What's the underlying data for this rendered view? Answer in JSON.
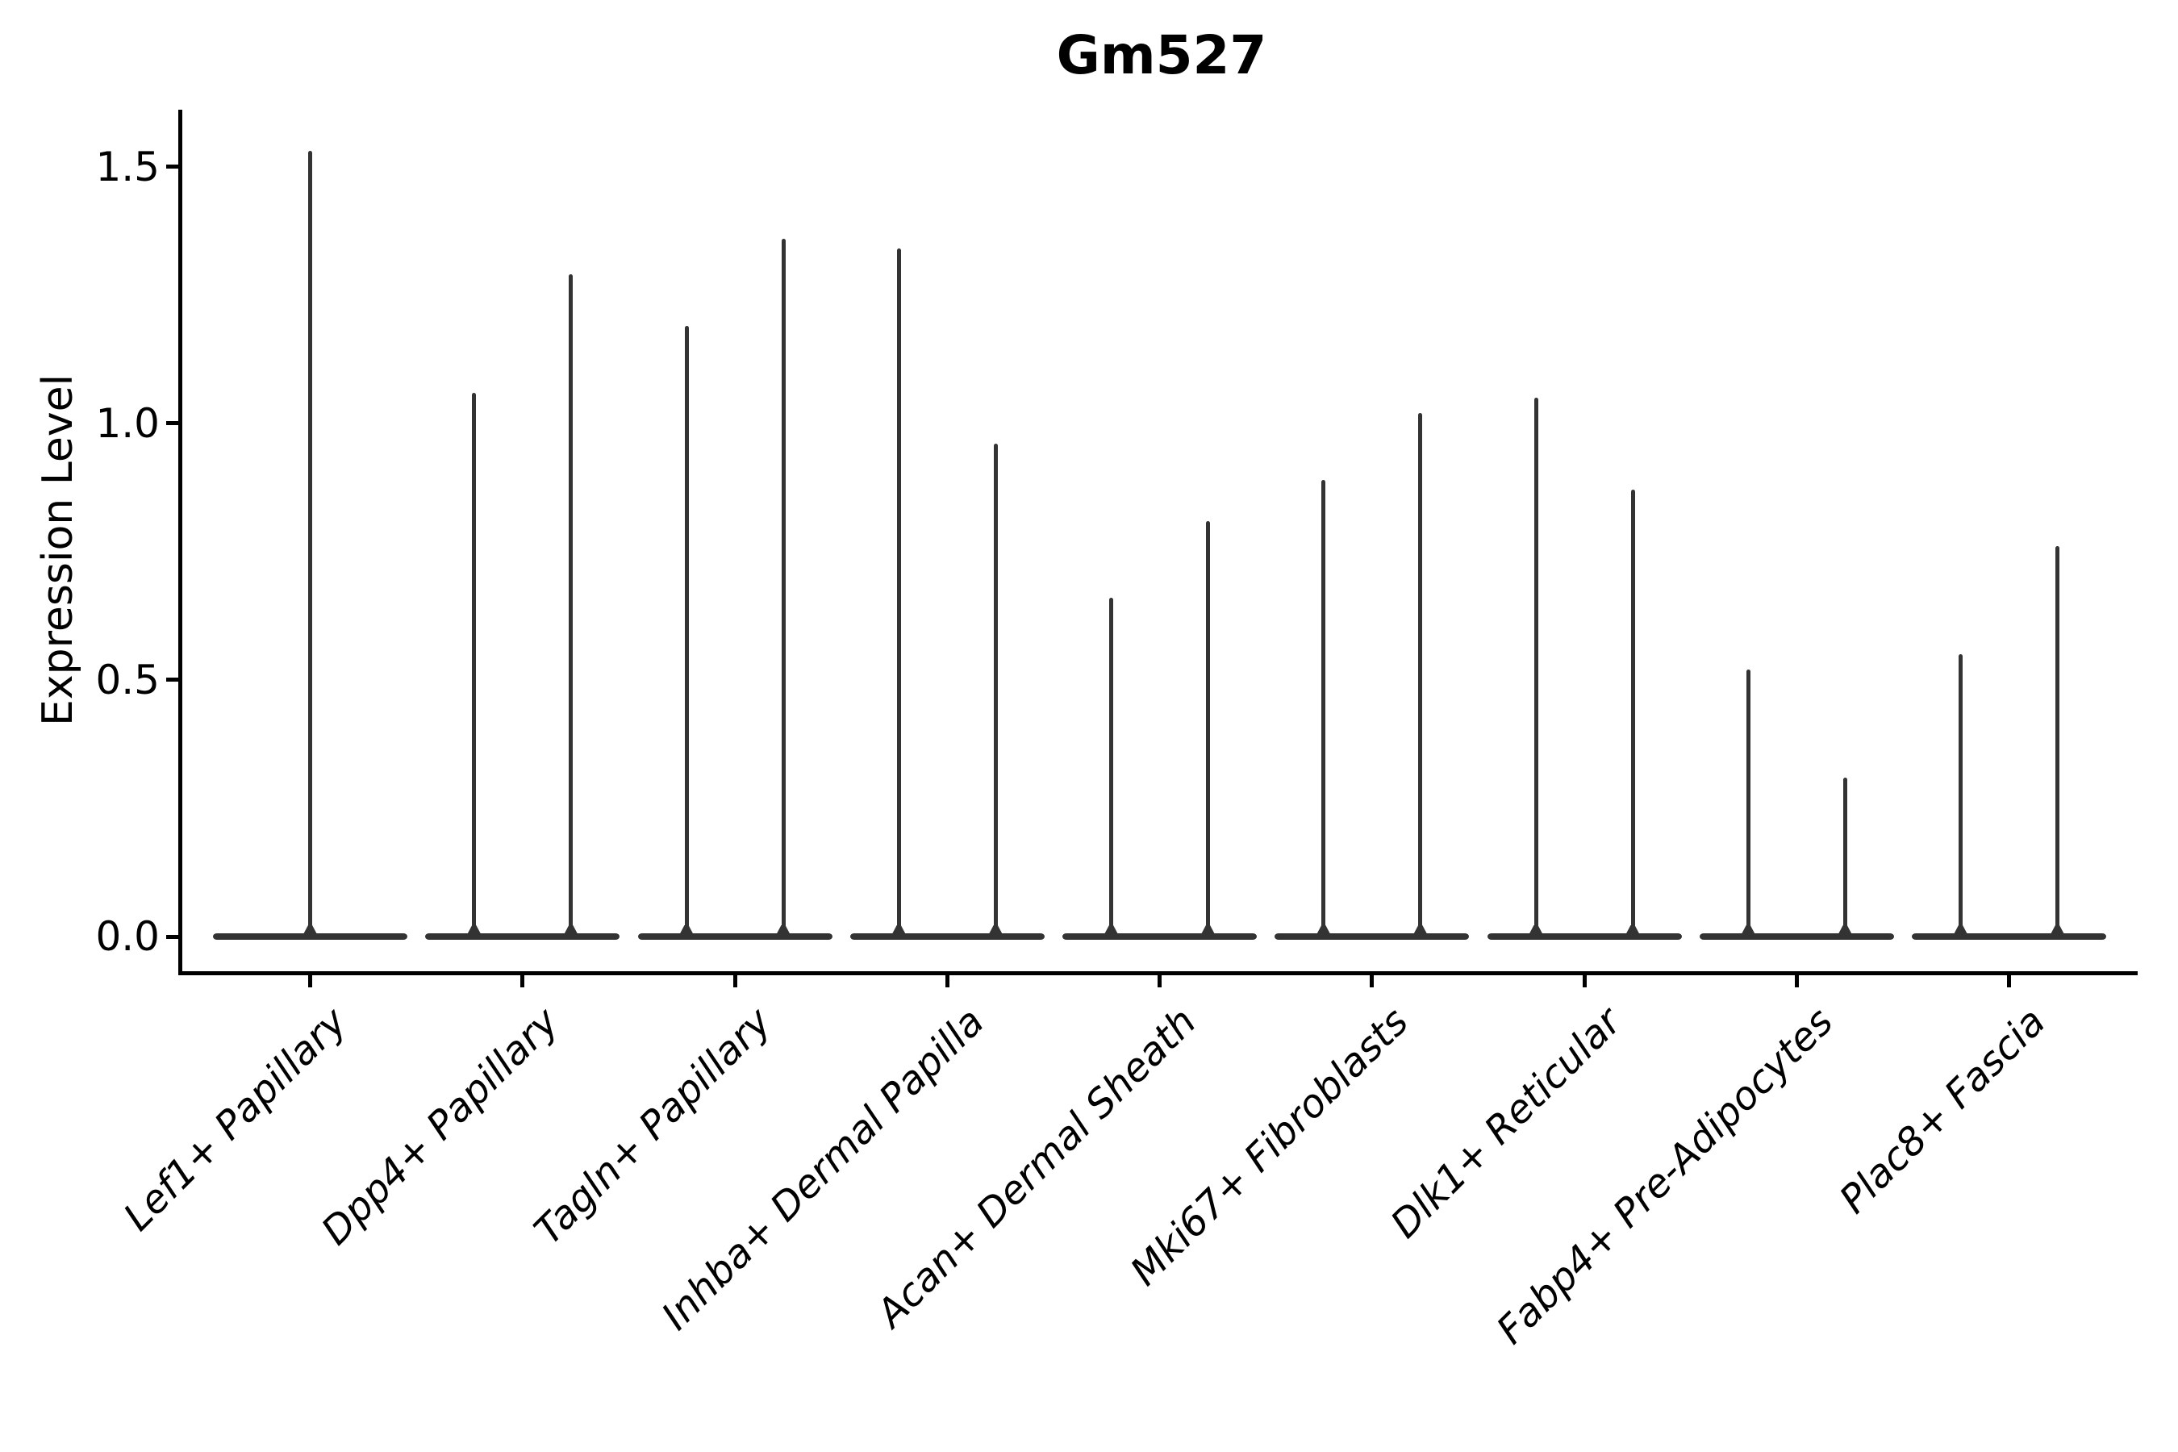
{
  "figure": {
    "title": "Gm527",
    "y_axis": {
      "label": "Expression Level",
      "tick_labels": [
        "1.5",
        "1.0",
        "0.5",
        "0.0"
      ]
    }
  },
  "chart_data": {
    "type": "violin",
    "title": "Gm527",
    "xlabel": "",
    "ylabel": "Expression Level",
    "ylim": [
      -0.07,
      1.61
    ],
    "yticks": [
      1.5,
      1.0,
      0.5,
      0.0
    ],
    "grid": false,
    "legend": "none",
    "categories": [
      "Lef1+ Papillary",
      "Dpp4+ Papillary",
      "Tagln+ Papillary",
      "Inhba+ Dermal Papilla",
      "Acan+ Dermal Sheath",
      "Mki67+ Fibroblasts",
      "Dlk1+ Reticular",
      "Fabp4+ Pre-Adipocytes",
      "Plac8+ Fascia"
    ],
    "series": [
      {
        "category": "Lef1+ Papillary",
        "violin_peaks": [
          1.53
        ]
      },
      {
        "category": "Dpp4+ Papillary",
        "violin_peaks": [
          1.06,
          1.29
        ]
      },
      {
        "category": "Tagln+ Papillary",
        "violin_peaks": [
          1.19,
          1.36
        ]
      },
      {
        "category": "Inhba+ Dermal Papilla",
        "violin_peaks": [
          1.34,
          0.96
        ]
      },
      {
        "category": "Acan+ Dermal Sheath",
        "violin_peaks": [
          0.66,
          0.81
        ]
      },
      {
        "category": "Mki67+ Fibroblasts",
        "violin_peaks": [
          0.89,
          1.02
        ]
      },
      {
        "category": "Dlk1+ Reticular",
        "violin_peaks": [
          1.05,
          0.87
        ]
      },
      {
        "category": "Fabp4+ Pre-Adipocytes",
        "violin_peaks": [
          0.52,
          0.31
        ]
      },
      {
        "category": "Plac8+ Fascia",
        "violin_peaks": [
          0.55,
          0.76
        ]
      }
    ],
    "shape_note": "Each violin is a wide flat density at 0 with a thin vertical spike reaching its maximum expression value",
    "colors": {
      "violin": "#333333",
      "axis": "#000000",
      "text": "#000000",
      "background": "#ffffff"
    }
  }
}
